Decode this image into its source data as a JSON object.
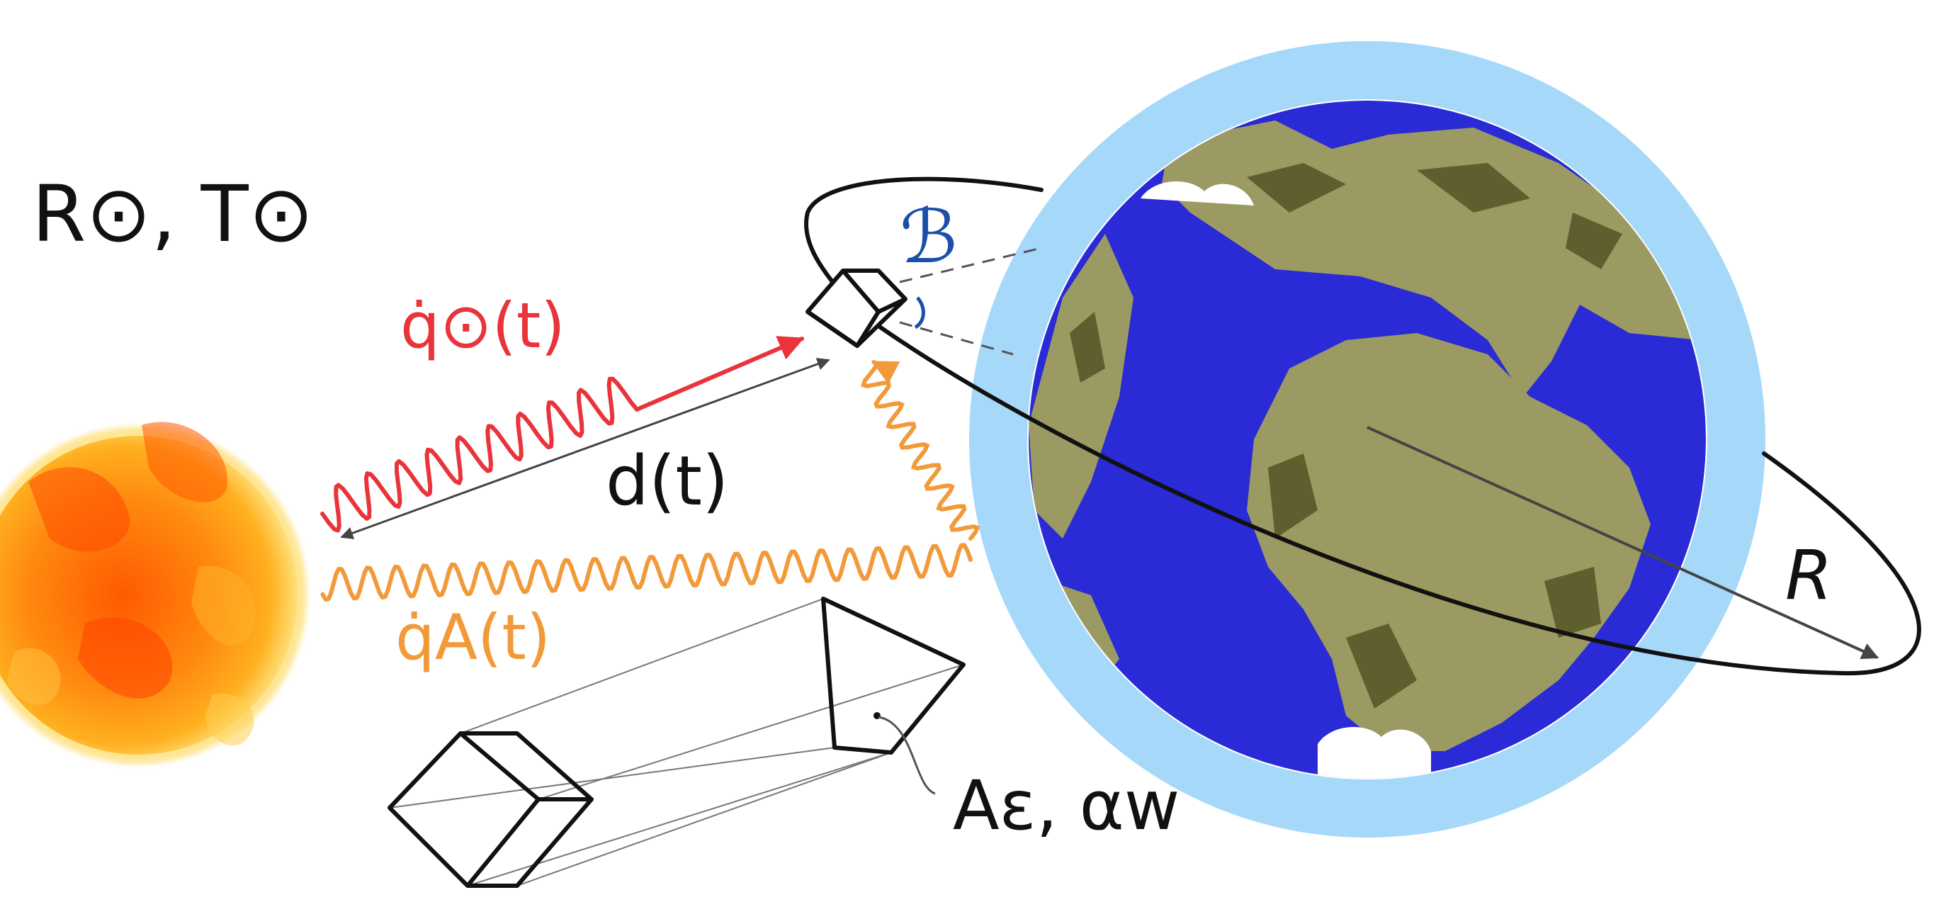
{
  "labels": {
    "sun_params": "R⊙, T⊙",
    "q_sun": "q̇⊙(t)",
    "q_albedo": "q̇A(t)",
    "distance": "d(t)",
    "frame": "ℬ",
    "radius": "R",
    "surface_props": "Aε, αw"
  },
  "colors": {
    "sun_core": "#ff7a00",
    "sun_edge": "#ffd23a",
    "solar_flux": "#e8343a",
    "albedo_flux": "#f29a3a",
    "ocean": "#2a2ad6",
    "land": "#9a9a62",
    "land_shadow": "#5e5e2e",
    "atmosphere": "#a6d8fa",
    "orbit": "#111111",
    "frame_label": "#1b4fa8"
  },
  "icons": {
    "sun": "sun-icon",
    "earth": "earth-icon",
    "satellite": "cube-satellite-icon"
  }
}
